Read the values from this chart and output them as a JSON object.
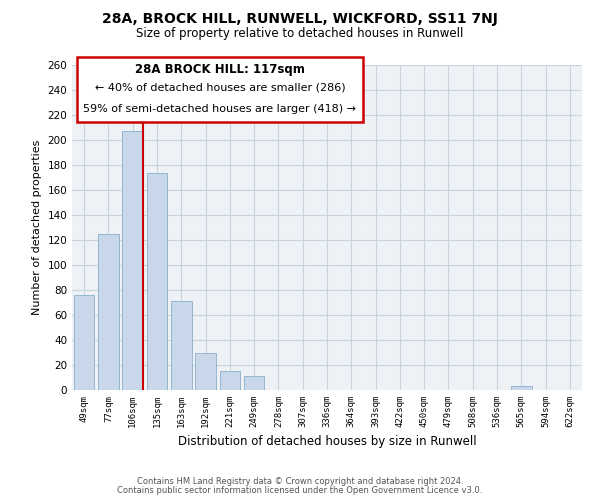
{
  "title1": "28A, BROCK HILL, RUNWELL, WICKFORD, SS11 7NJ",
  "title2": "Size of property relative to detached houses in Runwell",
  "xlabel": "Distribution of detached houses by size in Runwell",
  "ylabel": "Number of detached properties",
  "bar_labels": [
    "49sqm",
    "77sqm",
    "106sqm",
    "135sqm",
    "163sqm",
    "192sqm",
    "221sqm",
    "249sqm",
    "278sqm",
    "307sqm",
    "336sqm",
    "364sqm",
    "393sqm",
    "422sqm",
    "450sqm",
    "479sqm",
    "508sqm",
    "536sqm",
    "565sqm",
    "594sqm",
    "622sqm"
  ],
  "bar_values": [
    76,
    125,
    207,
    174,
    71,
    30,
    15,
    11,
    0,
    0,
    0,
    0,
    0,
    0,
    0,
    0,
    0,
    0,
    3,
    0,
    0
  ],
  "bar_color": "#c8d8ea",
  "bar_edge_color": "#8aafc8",
  "vline_color": "#cc0000",
  "ylim": [
    0,
    260
  ],
  "yticks": [
    0,
    20,
    40,
    60,
    80,
    100,
    120,
    140,
    160,
    180,
    200,
    220,
    240,
    260
  ],
  "annotation_title": "28A BROCK HILL: 117sqm",
  "annotation_line1": "← 40% of detached houses are smaller (286)",
  "annotation_line2": "59% of semi-detached houses are larger (418) →",
  "footer1": "Contains HM Land Registry data © Crown copyright and database right 2024.",
  "footer2": "Contains public sector information licensed under the Open Government Licence v3.0.",
  "grid_color": "#c8d4dc",
  "bg_color": "#eef2f6"
}
